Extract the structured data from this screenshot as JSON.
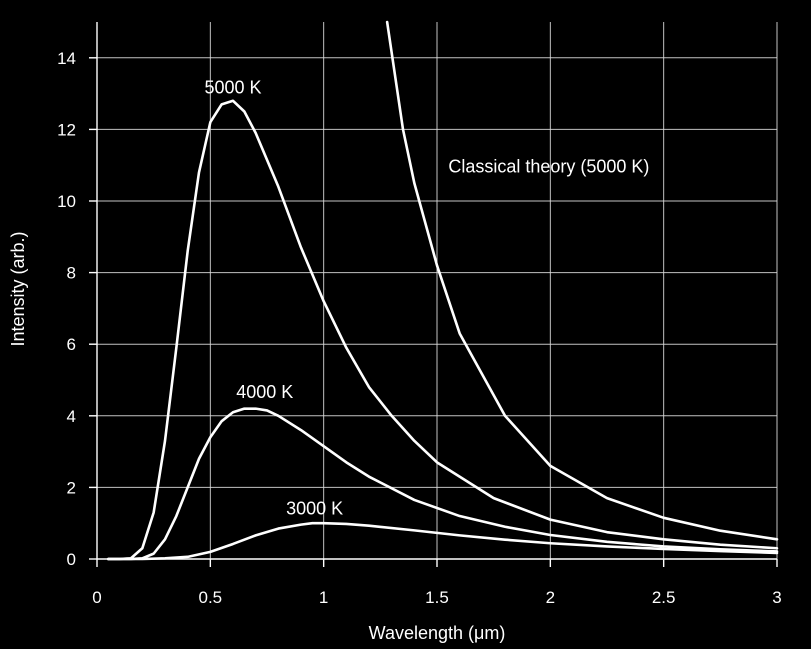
{
  "chart_data": {
    "type": "line",
    "title": "",
    "xlabel": "Wavelength (μm)",
    "ylabel": "Intensity (arb.)",
    "xlim": [
      0,
      3
    ],
    "ylim": [
      0,
      15
    ],
    "x_ticks": [
      {
        "value": 0,
        "label": "0"
      },
      {
        "value": 0.5,
        "label": "0.5"
      },
      {
        "value": 1,
        "label": "1"
      },
      {
        "value": 1.5,
        "label": "1.5"
      },
      {
        "value": 2,
        "label": "2"
      },
      {
        "value": 2.5,
        "label": "2.5"
      },
      {
        "value": 3,
        "label": "3"
      }
    ],
    "y_ticks": [
      {
        "value": 0,
        "label": "0"
      },
      {
        "value": 2,
        "label": "2"
      },
      {
        "value": 4,
        "label": "4"
      },
      {
        "value": 6,
        "label": "6"
      },
      {
        "value": 8,
        "label": "8"
      },
      {
        "value": 10,
        "label": "10"
      },
      {
        "value": 12,
        "label": "12"
      },
      {
        "value": 14,
        "label": "14"
      }
    ],
    "grid": true,
    "series": [
      {
        "name": "5000 K",
        "x": [
          0.05,
          0.1,
          0.15,
          0.2,
          0.25,
          0.3,
          0.35,
          0.4,
          0.45,
          0.5,
          0.55,
          0.6,
          0.65,
          0.7,
          0.8,
          0.9,
          1,
          1.1,
          1.2,
          1.3,
          1.4,
          1.5,
          1.75,
          2,
          2.25,
          2.5,
          2.75,
          3
        ],
        "y": [
          0,
          0,
          0.02,
          0.3,
          1.3,
          3.3,
          5.9,
          8.6,
          10.8,
          12.2,
          12.7,
          12.8,
          12.5,
          11.9,
          10.4,
          8.7,
          7.2,
          5.9,
          4.8,
          4,
          3.3,
          2.7,
          1.7,
          1.1,
          0.75,
          0.55,
          0.4,
          0.3
        ]
      },
      {
        "name": "4000 K",
        "x": [
          0.05,
          0.1,
          0.15,
          0.2,
          0.25,
          0.3,
          0.35,
          0.4,
          0.45,
          0.5,
          0.55,
          0.6,
          0.65,
          0.7,
          0.75,
          0.8,
          0.9,
          1,
          1.1,
          1.2,
          1.4,
          1.6,
          1.8,
          2,
          2.25,
          2.5,
          2.75,
          3
        ],
        "y": [
          0,
          0,
          0,
          0.02,
          0.15,
          0.55,
          1.2,
          2,
          2.8,
          3.4,
          3.85,
          4.1,
          4.2,
          4.2,
          4.15,
          4,
          3.6,
          3.15,
          2.7,
          2.3,
          1.65,
          1.2,
          0.9,
          0.67,
          0.48,
          0.35,
          0.27,
          0.21
        ]
      },
      {
        "name": "3000 K",
        "x": [
          0.05,
          0.2,
          0.3,
          0.4,
          0.5,
          0.6,
          0.7,
          0.8,
          0.9,
          0.95,
          1,
          1.1,
          1.2,
          1.4,
          1.6,
          1.8,
          2,
          2.25,
          2.5,
          2.75,
          3
        ],
        "y": [
          0,
          0,
          0.02,
          0.06,
          0.2,
          0.42,
          0.66,
          0.85,
          0.96,
          1,
          1,
          0.98,
          0.93,
          0.8,
          0.66,
          0.54,
          0.44,
          0.35,
          0.28,
          0.22,
          0.17
        ]
      },
      {
        "name": "Classical theory (5000 K)",
        "x": [
          1.28,
          1.35,
          1.4,
          1.5,
          1.6,
          1.8,
          2,
          2.25,
          2.5,
          2.75,
          3
        ],
        "y": [
          15,
          12,
          10.5,
          8.2,
          6.3,
          4,
          2.6,
          1.7,
          1.15,
          0.79,
          0.55
        ]
      }
    ],
    "annotations": [
      {
        "text": "5000 K",
        "x": 0.6,
        "y": 13
      },
      {
        "text": "4000 K",
        "x": 0.74,
        "y": 4.5
      },
      {
        "text": "3000 K",
        "x": 0.96,
        "y": 1.25
      },
      {
        "text": "Classical theory (5000 K)",
        "x": 1.55,
        "y": 10.8
      }
    ]
  }
}
